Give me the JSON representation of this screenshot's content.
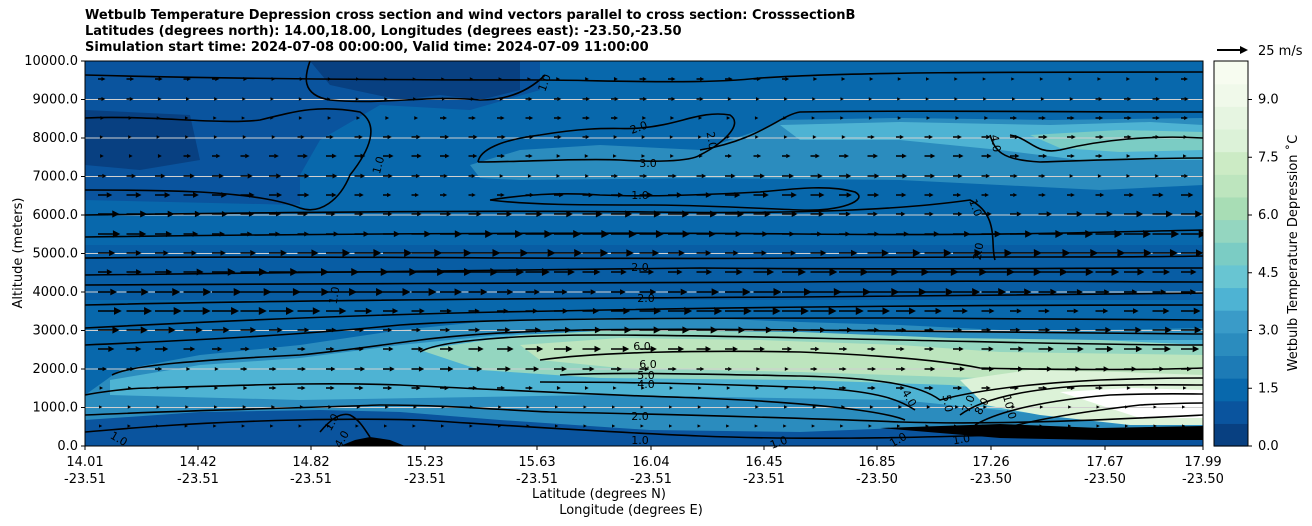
{
  "title": {
    "line1": "Wetbulb Temperature Depression cross section and wind vectors parallel to cross section: CrosssectionB",
    "line2": "Latitudes (degrees north): 14.00,18.00, Longitudes (degrees east): -23.50,-23.50",
    "line3": "Simulation start time: 2024-07-08 00:00:00, Valid time: 2024-07-09 11:00:00"
  },
  "chart_data": {
    "type": "heatmap",
    "ylabel": "Altitude (meters)",
    "xlabel_lat": "Latitude (degrees N)",
    "xlabel_lon": "Longitude (degrees E)",
    "ylim": [
      0,
      10000
    ],
    "yticks": [
      "0.0",
      "1000.0",
      "2000.0",
      "3000.0",
      "4000.0",
      "5000.0",
      "6000.0",
      "7000.0",
      "8000.0",
      "9000.0",
      "10000.0"
    ],
    "xticks": [
      {
        "lat": "14.01",
        "lon": "-23.51"
      },
      {
        "lat": "14.42",
        "lon": "-23.51"
      },
      {
        "lat": "14.82",
        "lon": "-23.51"
      },
      {
        "lat": "15.23",
        "lon": "-23.51"
      },
      {
        "lat": "15.63",
        "lon": "-23.51"
      },
      {
        "lat": "16.04",
        "lon": "-23.51"
      },
      {
        "lat": "16.45",
        "lon": "-23.51"
      },
      {
        "lat": "16.85",
        "lon": "-23.50"
      },
      {
        "lat": "17.26",
        "lon": "-23.50"
      },
      {
        "lat": "17.67",
        "lon": "-23.50"
      },
      {
        "lat": "17.99",
        "lon": "-23.50"
      }
    ],
    "grid": "horizontal",
    "colorbar": {
      "label": "Wetbulb Temperature Depression ˚C",
      "range": [
        0,
        10
      ],
      "ticks": [
        "0.0",
        "1.5",
        "3.0",
        "4.5",
        "6.0",
        "7.5",
        "9.0"
      ],
      "colors": [
        "#084081",
        "#0a549e",
        "#0868ac",
        "#1d7bb6",
        "#2b8cbe",
        "#3a9bc8",
        "#4eb3d3",
        "#68c5d2",
        "#7bccc4",
        "#94d6c0",
        "#a8ddb5",
        "#bde5be",
        "#ccebc5",
        "#dcf2d8",
        "#e6f5e1",
        "#f0f9ea",
        "#f7fcf0"
      ]
    },
    "quiver_key": "25 m/s",
    "contour_labels": [
      "1.0",
      "2.0",
      "3.0",
      "4.0",
      "5.0",
      "6.0",
      "7.0",
      "8.0",
      "10.0"
    ]
  }
}
